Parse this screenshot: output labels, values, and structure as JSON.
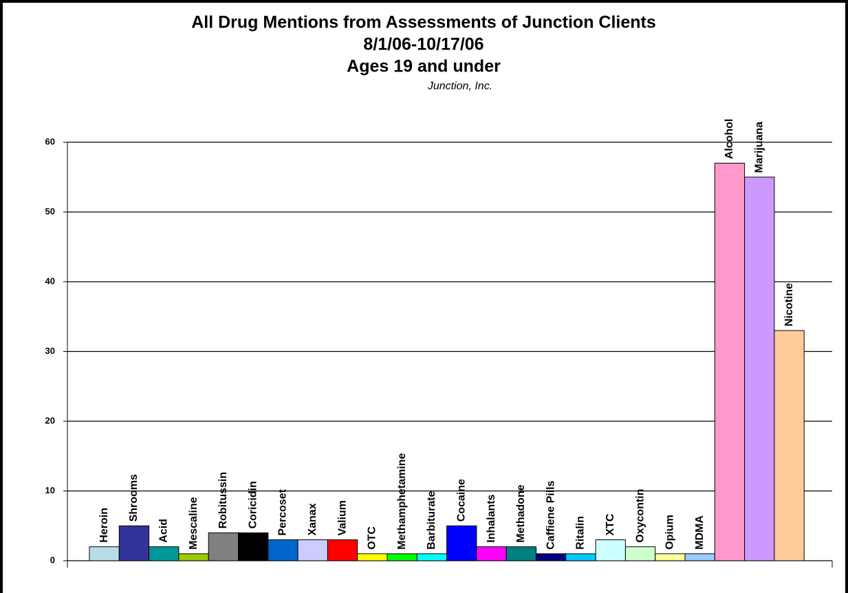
{
  "chart_data": {
    "type": "bar",
    "title": [
      "All Drug Mentions from Assessments of Junction Clients",
      "8/1/06-10/17/06",
      "Ages 19 and under"
    ],
    "subtitle": "Junction, Inc.",
    "categories": [
      "Heroin",
      "Shrooms",
      "Acid",
      "Mescaline",
      "Robitussin",
      "Coricidin",
      "Percoset",
      "Xanax",
      "Valium",
      "OTC",
      "Methamphetamine",
      "Barbiturate",
      "Cocaine",
      "Inhalants",
      "Methadone",
      "Caffiene Pills",
      "Ritalin",
      "XTC",
      "Oxycontin",
      "Opium",
      "MDMA",
      "Alcohol",
      "Marijuana",
      "Nicotine"
    ],
    "values": [
      2,
      5,
      2,
      1,
      4,
      4,
      3,
      3,
      3,
      1,
      1,
      1,
      5,
      2,
      2,
      1,
      1,
      3,
      2,
      1,
      1,
      57,
      55,
      33
    ],
    "colors": [
      "#b7dde8",
      "#333399",
      "#009999",
      "#99cc00",
      "#808080",
      "#000000",
      "#0066cc",
      "#ccccff",
      "#ff0000",
      "#ffff00",
      "#00ff00",
      "#00ffff",
      "#0000ff",
      "#ff00ff",
      "#008080",
      "#000080",
      "#00ccff",
      "#ccffff",
      "#ccffcc",
      "#ffff99",
      "#99ccff",
      "#ff99cc",
      "#cc99ff",
      "#ffcc99"
    ],
    "ylim": [
      0,
      60
    ],
    "yticks": [
      0,
      10,
      20,
      30,
      40,
      50,
      60
    ],
    "grid": true
  }
}
